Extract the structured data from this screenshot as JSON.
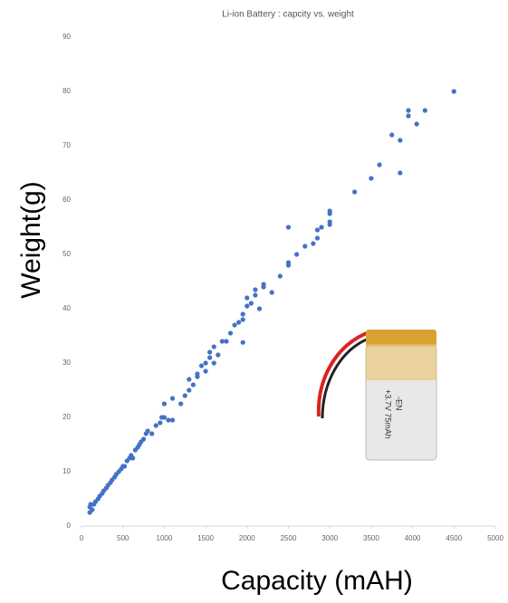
{
  "chart_data": {
    "type": "scatter",
    "title": "Li-ion Battery : capcity vs. weight",
    "x_label": "Capacity (mAH)",
    "y_label": "Weight(g)",
    "color": "#4472c4",
    "xlim": [
      0,
      5000
    ],
    "xticks": [
      0,
      500,
      1000,
      1500,
      2000,
      2500,
      3000,
      3500,
      4000,
      4500,
      5000
    ],
    "ylim": [
      0,
      90
    ],
    "yticks": [
      0,
      10,
      20,
      30,
      40,
      50,
      60,
      70,
      80,
      90
    ],
    "image_text": [
      "-EN",
      "+3.7V 75mAh"
    ],
    "x": [
      100,
      100,
      110,
      130,
      150,
      170,
      200,
      220,
      250,
      270,
      300,
      320,
      350,
      370,
      400,
      420,
      450,
      480,
      500,
      520,
      550,
      580,
      600,
      620,
      650,
      680,
      700,
      720,
      750,
      780,
      800,
      850,
      900,
      950,
      970,
      1000,
      1000,
      1050,
      1100,
      1100,
      1200,
      1250,
      1300,
      1300,
      1350,
      1400,
      1400,
      1450,
      1500,
      1500,
      1550,
      1550,
      1600,
      1600,
      1650,
      1700,
      1750,
      1800,
      1850,
      1900,
      1950,
      1950,
      1950,
      2000,
      2000,
      2050,
      2100,
      2100,
      2150,
      2200,
      2200,
      2300,
      2400,
      2500,
      2500,
      2500,
      2600,
      2700,
      2800,
      2850,
      2850,
      2900,
      3000,
      3000,
      3000,
      3000,
      3300,
      3500,
      3600,
      3750,
      3850,
      3850,
      3950,
      3950,
      4050,
      4150,
      4500
    ],
    "values": [
      2.5,
      3.5,
      4,
      3,
      4,
      4.5,
      5,
      5.5,
      6,
      6.5,
      7,
      7.5,
      8,
      8.5,
      9,
      9.5,
      10,
      10.5,
      11,
      11,
      12,
      12.5,
      13,
      12.5,
      14,
      14.5,
      15,
      15.5,
      16,
      17,
      17.5,
      17,
      18.5,
      19,
      20,
      20,
      22.5,
      19.5,
      19.5,
      23.5,
      22.5,
      24,
      25,
      27,
      26,
      28,
      27.5,
      29.5,
      30,
      28.5,
      31,
      32,
      33,
      30,
      31.5,
      34,
      34,
      35.5,
      37,
      37.5,
      33.8,
      38,
      39,
      42,
      40.5,
      41,
      42.5,
      43.5,
      40,
      44,
      44.5,
      43,
      46,
      48,
      48.5,
      55,
      50,
      51.5,
      52,
      53,
      54.5,
      55,
      55.5,
      56,
      57.5,
      58,
      61.5,
      64,
      66.5,
      72,
      71,
      65,
      75.5,
      76.5,
      74,
      76.5,
      80
    ]
  }
}
